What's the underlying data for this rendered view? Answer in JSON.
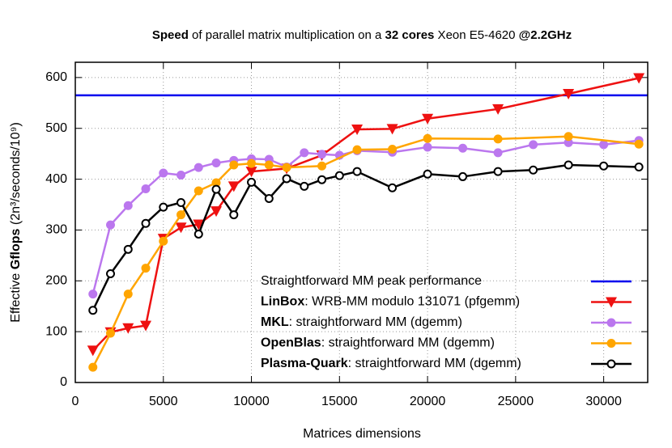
{
  "chart_data": {
    "type": "line",
    "title": [
      {
        "text": "Speed",
        "bold": true
      },
      {
        "text": " of parallel matrix multiplication on a ",
        "bold": false
      },
      {
        "text": "32 cores",
        "bold": true
      },
      {
        "text": " Xeon E5-4620 ",
        "bold": false
      },
      {
        "text": "@2.2GHz",
        "bold": true
      }
    ],
    "xlabel": "Matrices dimensions",
    "ylabel": [
      {
        "text": "Effective ",
        "bold": false
      },
      {
        "text": "Gflops",
        "bold": true
      },
      {
        "text": " (2n³/seconds/10⁹)",
        "bold": false
      }
    ],
    "xlim": [
      0,
      32500
    ],
    "ylim": [
      0,
      630
    ],
    "xticks": [
      0,
      5000,
      10000,
      15000,
      20000,
      25000,
      30000
    ],
    "yticks": [
      0,
      100,
      200,
      300,
      400,
      500,
      600
    ],
    "grid": true,
    "legend": "lower right",
    "series": [
      {
        "name": "Straightforward MM peak performance",
        "color": "#0000ee",
        "style": "hline",
        "values": [
          565
        ]
      },
      {
        "name": "LinBox: WRB-MM modulo 131071 (pfgemm)",
        "color": "#ee1111",
        "marker": "triangle-down",
        "x": [
          1000,
          2000,
          3000,
          4000,
          5000,
          6000,
          7000,
          8000,
          9000,
          10000,
          12000,
          14000,
          16000,
          18000,
          20000,
          24000,
          28000,
          32000
        ],
        "values": [
          63,
          99,
          107,
          112,
          283,
          305,
          311,
          337,
          386,
          415,
          421,
          447,
          498,
          499,
          519,
          538,
          568,
          599
        ]
      },
      {
        "name": "MKL: straightforward MM (dgemm)",
        "color": "#bb77ee",
        "marker": "circle",
        "x": [
          1000,
          2000,
          3000,
          4000,
          5000,
          6000,
          7000,
          8000,
          9000,
          10000,
          11000,
          12000,
          13000,
          14000,
          15000,
          16000,
          18000,
          20000,
          22000,
          24000,
          26000,
          28000,
          30000,
          32000
        ],
        "values": [
          174,
          310,
          348,
          381,
          412,
          408,
          423,
          432,
          437,
          440,
          439,
          424,
          452,
          449,
          447,
          456,
          453,
          463,
          461,
          452,
          468,
          472,
          468,
          476
        ]
      },
      {
        "name": "OpenBlas: straightforward MM (dgemm)",
        "color": "#ffa500",
        "marker": "circle",
        "x": [
          1000,
          2000,
          3000,
          4000,
          5000,
          6000,
          7000,
          8000,
          9000,
          10000,
          11000,
          12000,
          14000,
          16000,
          18000,
          20000,
          24000,
          28000,
          32000
        ],
        "values": [
          30,
          97,
          174,
          225,
          278,
          330,
          377,
          393,
          428,
          431,
          428,
          423,
          426,
          458,
          459,
          480,
          479,
          484,
          469
        ]
      },
      {
        "name": "Plasma-Quark: straightforward MM (dgemm)",
        "color": "#000000",
        "marker": "open-circle",
        "x": [
          1000,
          2000,
          3000,
          4000,
          5000,
          6000,
          7000,
          8000,
          9000,
          10000,
          11000,
          12000,
          13000,
          14000,
          15000,
          16000,
          18000,
          20000,
          22000,
          24000,
          26000,
          28000,
          30000,
          32000
        ],
        "values": [
          142,
          214,
          262,
          313,
          345,
          354,
          292,
          380,
          330,
          394,
          362,
          401,
          386,
          399,
          407,
          415,
          383,
          410,
          405,
          415,
          418,
          428,
          426,
          424
        ]
      }
    ]
  }
}
